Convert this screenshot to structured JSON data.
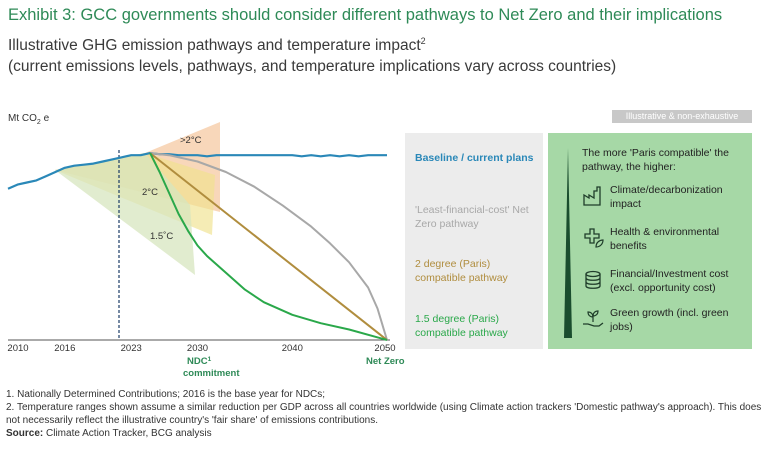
{
  "header": {
    "title": "Exhibit 3: GCC governments should consider different pathways to Net Zero and their implications",
    "subtitle_line1": "Illustrative GHG emission pathways and temperature impact",
    "subtitle_sup": "2",
    "subtitle_line2": "(current emissions levels, pathways, and temperature implications vary across countries)"
  },
  "badge": "Illustrative & non-exhaustive",
  "chart_data": {
    "type": "line",
    "ylabel_main": "Mt CO",
    "ylabel_sub": "2",
    "ylabel_tail": " e",
    "x_ticks": [
      "2010",
      "2016",
      "2023",
      "2030",
      "2040",
      "2050"
    ],
    "x_tick_values": [
      2010,
      2016,
      2023,
      2030,
      2040,
      2050
    ],
    "xlim": [
      2010,
      2050
    ],
    "ylim": [
      0,
      100
    ],
    "annotations": {
      "ndc_label": "NDC",
      "ndc_sup": "1",
      "ndc_label2": "commitment",
      "net_zero": "Net Zero",
      "band_gt2": ">2°C",
      "band_2": "2°C",
      "band_15": "1.5˚C"
    },
    "series": [
      {
        "name": "Baseline / current plans",
        "color": "#2a88b8",
        "points": [
          [
            2010,
            72
          ],
          [
            2011,
            74
          ],
          [
            2012,
            75
          ],
          [
            2013,
            76
          ],
          [
            2014,
            78
          ],
          [
            2015,
            80
          ],
          [
            2016,
            82
          ],
          [
            2017,
            83
          ],
          [
            2018,
            83.5
          ],
          [
            2019,
            84
          ],
          [
            2020,
            85
          ],
          [
            2021,
            86
          ],
          [
            2022,
            87
          ],
          [
            2023,
            88
          ],
          [
            2024,
            88
          ],
          [
            2025,
            89
          ],
          [
            2026,
            88.5
          ],
          [
            2027,
            88.5
          ],
          [
            2028,
            88
          ],
          [
            2029,
            88
          ],
          [
            2030,
            88
          ],
          [
            2031,
            87.5
          ],
          [
            2032,
            88
          ],
          [
            2033,
            88
          ],
          [
            2034,
            88
          ],
          [
            2035,
            88
          ],
          [
            2036,
            88
          ],
          [
            2037,
            88
          ],
          [
            2038,
            88
          ],
          [
            2039,
            88
          ],
          [
            2040,
            88
          ],
          [
            2041,
            87.5
          ],
          [
            2042,
            88
          ],
          [
            2043,
            87.5
          ],
          [
            2044,
            88
          ],
          [
            2045,
            87.5
          ],
          [
            2046,
            88
          ],
          [
            2047,
            87.5
          ],
          [
            2048,
            88
          ],
          [
            2049,
            88
          ],
          [
            2050,
            88
          ]
        ]
      },
      {
        "name": "'Least-financial-cost' Net Zero pathway",
        "color": "#a8a8a8",
        "points": [
          [
            2025,
            89
          ],
          [
            2027,
            88
          ],
          [
            2030,
            85
          ],
          [
            2033,
            80
          ],
          [
            2036,
            73
          ],
          [
            2039,
            64
          ],
          [
            2042,
            54
          ],
          [
            2044,
            46
          ],
          [
            2046,
            37
          ],
          [
            2048,
            25
          ],
          [
            2049,
            15
          ],
          [
            2050,
            0
          ]
        ]
      },
      {
        "name": "2 degree (Paris) compatible pathway",
        "color": "#b08d3e",
        "points": [
          [
            2025,
            89
          ],
          [
            2050,
            0
          ]
        ]
      },
      {
        "name": "1.5 degree (Paris) compatible pathway",
        "color": "#2aa84a",
        "points": [
          [
            2025,
            89
          ],
          [
            2026,
            80
          ],
          [
            2027,
            70
          ],
          [
            2028,
            60
          ],
          [
            2029,
            52
          ],
          [
            2030,
            45
          ],
          [
            2031,
            40
          ],
          [
            2033,
            32
          ],
          [
            2035,
            24
          ],
          [
            2037,
            18
          ],
          [
            2040,
            12
          ],
          [
            2043,
            8
          ],
          [
            2046,
            5
          ],
          [
            2050,
            0
          ]
        ]
      }
    ]
  },
  "legend": {
    "baseline": "Baseline / current plans",
    "least_cost": "'Least-financial-cost' Net Zero pathway",
    "two_deg": "2 degree (Paris) compatible pathway",
    "one_five_deg": "1.5 degree (Paris) compatible pathway"
  },
  "green_panel": {
    "heading": "The more 'Paris compatible' the pathway, the higher:",
    "items": [
      {
        "icon": "factory-icon",
        "label": "Climate/decarbonization impact"
      },
      {
        "icon": "health-leaf-icon",
        "label": "Health & environmental benefits"
      },
      {
        "icon": "coins-icon",
        "label": "Financial/Investment cost (excl. opportunity cost)"
      },
      {
        "icon": "hand-plant-icon",
        "label": "Green growth (incl. green jobs)"
      }
    ]
  },
  "footnotes": {
    "fn1": "1. Nationally Determined Contributions; 2016 is the base year for NDCs;",
    "fn2": "2. Temperature ranges shown assume a similar reduction per GDP across all countries worldwide (using Climate action trackers 'Domestic pathway's approach). This does not necessarily reflect the illustrative country's 'fair share' of emissions contributions.",
    "source_label": "Source:",
    "source_text": " Climate Action Tracker, BCG analysis"
  }
}
